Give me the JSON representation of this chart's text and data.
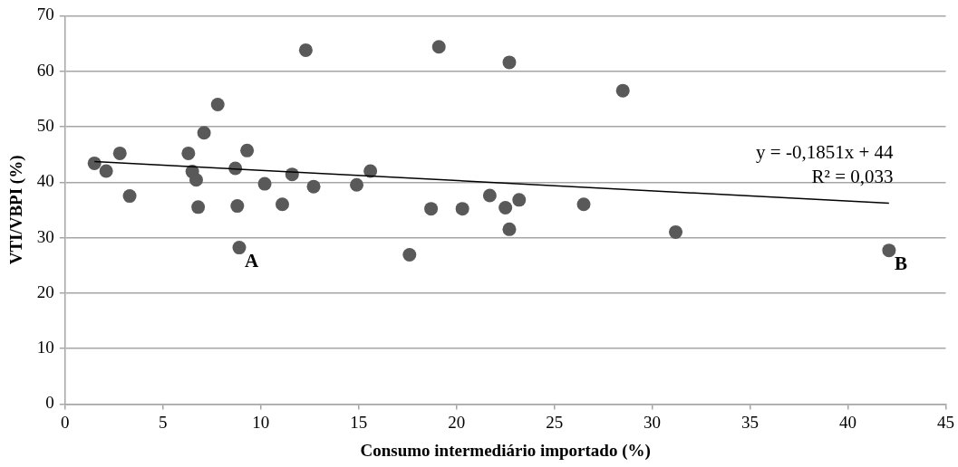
{
  "chart_data": {
    "type": "scatter",
    "xlabel": "Consumo intermediário importado (%)",
    "ylabel": "VTI/VBPI (%)",
    "xlim": [
      0,
      45
    ],
    "xticks": [
      0,
      5,
      10,
      15,
      20,
      25,
      30,
      35,
      40,
      45
    ],
    "ylim": [
      0,
      70
    ],
    "yticks": [
      0,
      10,
      20,
      30,
      40,
      50,
      60,
      70
    ],
    "grid": "y",
    "legend": false,
    "marker": "circle",
    "series": [
      {
        "color": "#595959",
        "x": [
          1.5,
          2.1,
          2.8,
          3.3,
          6.3,
          6.5,
          6.7,
          6.8,
          7.1,
          7.8,
          8.7,
          8.8,
          8.9,
          9.3,
          10.2,
          11.1,
          11.6,
          12.3,
          12.7,
          14.9,
          15.6,
          17.6,
          18.7,
          19.1,
          20.3,
          21.7,
          22.5,
          22.7,
          22.7,
          23.2,
          26.5,
          28.5,
          31.2,
          42.1
        ],
        "values": [
          43.4,
          42.0,
          45.2,
          37.5,
          45.2,
          41.9,
          40.4,
          35.5,
          48.9,
          54.0,
          42.5,
          35.7,
          28.2,
          45.7,
          39.7,
          36.0,
          41.4,
          63.8,
          39.2,
          39.5,
          42.0,
          26.9,
          35.2,
          64.4,
          35.2,
          37.6,
          35.4,
          31.5,
          61.6,
          36.8,
          36.0,
          56.5,
          31.0,
          27.7
        ]
      },
      {
        "type": "line",
        "color": "#000000",
        "marker": "none",
        "x": [
          1.5,
          42.1
        ],
        "values": [
          43.7,
          36.2
        ]
      }
    ],
    "annotations": [
      "y = -0,1851x + 44",
      "R² = 0,033",
      {
        "text": "A",
        "x": 8.9,
        "y": 28.2
      },
      {
        "text": "B",
        "x": 42.1,
        "y": 27.7
      }
    ]
  }
}
